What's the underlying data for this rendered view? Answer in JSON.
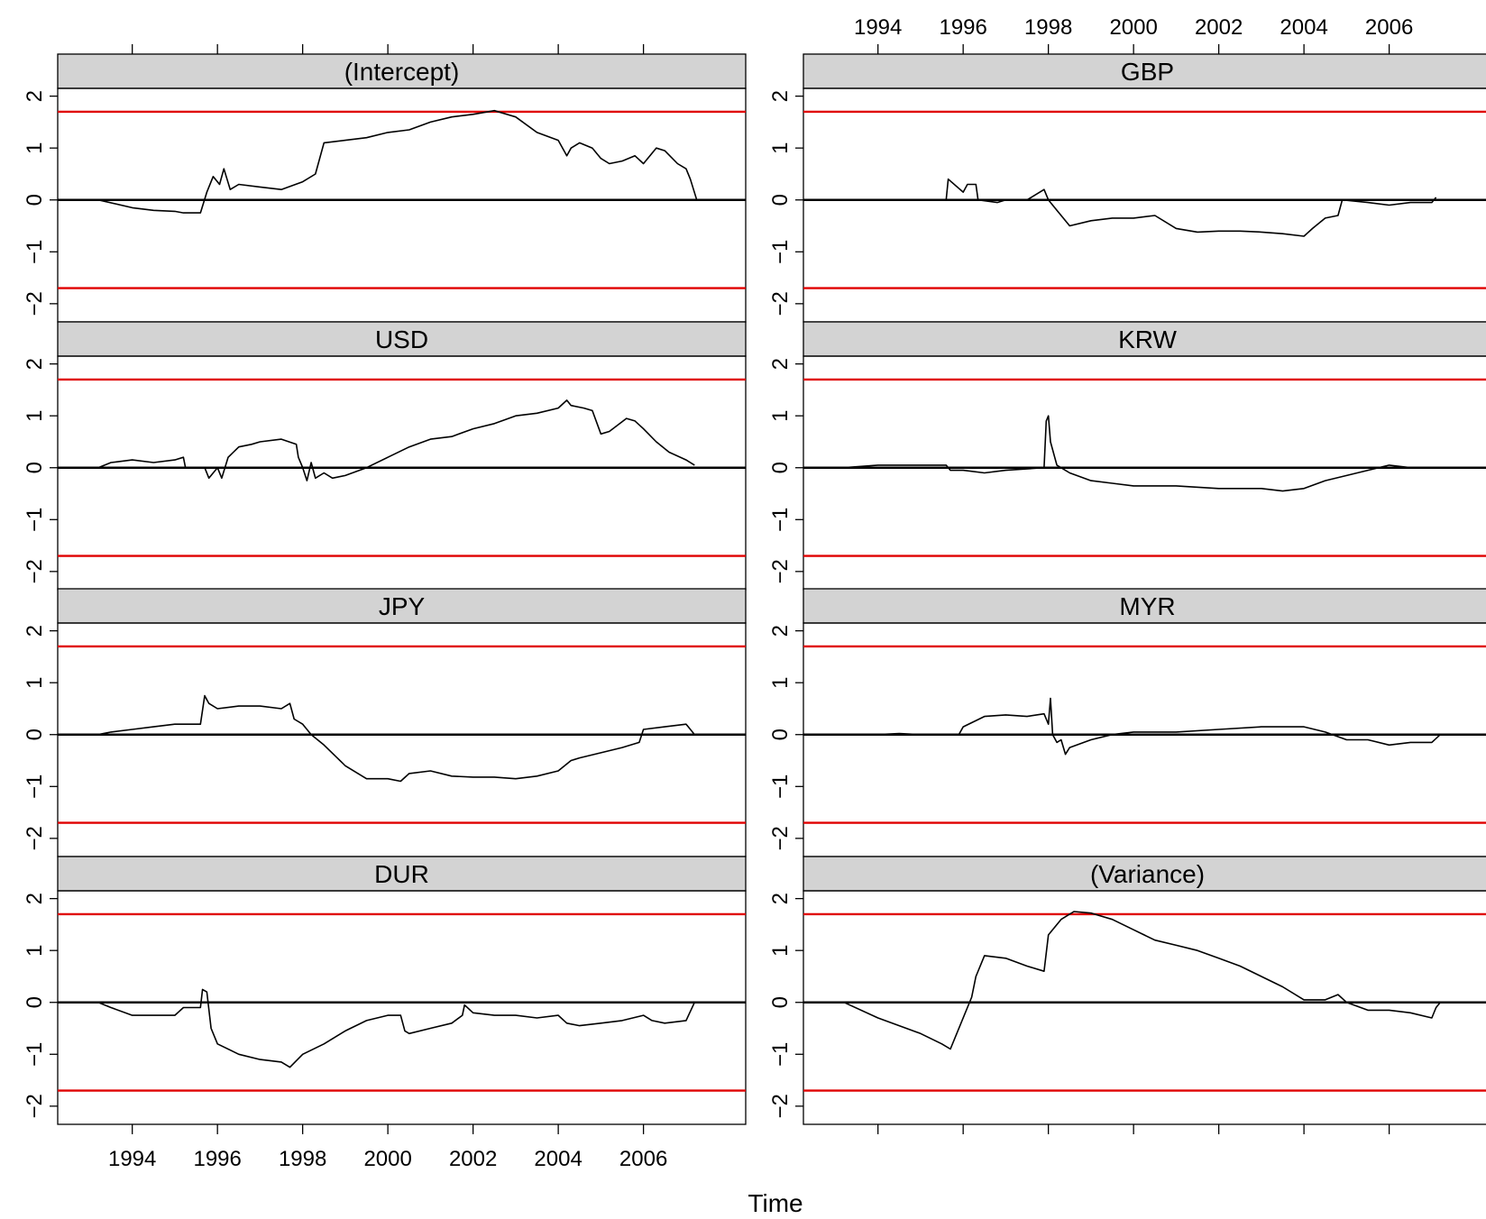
{
  "chart_data": {
    "type": "line",
    "xlabel": "Time",
    "x_ticks": [
      "1994",
      "1996",
      "1998",
      "2000",
      "2002",
      "2004",
      "2006"
    ],
    "y_ticks": [
      "−2",
      "−1",
      "0",
      "1",
      "2"
    ],
    "xlim": [
      1992.25,
      2008.4
    ],
    "ylim": [
      -2.35,
      2.15
    ],
    "reference_lines": {
      "boundary": [
        1.7,
        -1.7
      ],
      "zero": 0
    },
    "colors": {
      "boundary": "#e00000",
      "series": "#000000",
      "strip": "#d3d3d3"
    },
    "panels": [
      {
        "name": "(Intercept)",
        "x": [
          1993.2,
          1994.0,
          1994.5,
          1995.0,
          1995.2,
          1995.6,
          1995.75,
          1995.9,
          1996.05,
          1996.15,
          1996.3,
          1996.5,
          1997.0,
          1997.5,
          1998.0,
          1998.3,
          1998.5,
          1999.0,
          1999.5,
          2000.0,
          2000.5,
          2001.0,
          2001.5,
          2002.0,
          2002.5,
          2003.0,
          2003.5,
          2004.0,
          2004.2,
          2004.3,
          2004.5,
          2004.8,
          2005.0,
          2005.2,
          2005.5,
          2005.8,
          2006.0,
          2006.3,
          2006.5,
          2006.8,
          2007.0,
          2007.1,
          2007.25
        ],
        "y": [
          0.0,
          -0.15,
          -0.2,
          -0.22,
          -0.25,
          -0.25,
          0.15,
          0.45,
          0.3,
          0.6,
          0.2,
          0.3,
          0.25,
          0.2,
          0.35,
          0.5,
          1.1,
          1.15,
          1.2,
          1.3,
          1.35,
          1.5,
          1.6,
          1.65,
          1.72,
          1.6,
          1.3,
          1.15,
          0.85,
          1.0,
          1.1,
          1.0,
          0.8,
          0.7,
          0.75,
          0.85,
          0.7,
          1.0,
          0.95,
          0.7,
          0.6,
          0.4,
          0.0
        ]
      },
      {
        "name": "GBP",
        "x": [
          1993.2,
          1994.0,
          1995.0,
          1995.6,
          1995.65,
          1996.0,
          1996.1,
          1996.3,
          1996.35,
          1996.8,
          1997.0,
          1997.5,
          1997.9,
          1998.0,
          1998.2,
          1998.5,
          1999.0,
          1999.5,
          2000.0,
          2000.5,
          2001.0,
          2001.5,
          2002.0,
          2002.5,
          2003.0,
          2003.5,
          2004.0,
          2004.2,
          2004.5,
          2004.8,
          2004.9,
          2005.5,
          2006.0,
          2006.5,
          2007.0,
          2007.1
        ],
        "y": [
          0.0,
          0.0,
          0.0,
          0.0,
          0.4,
          0.15,
          0.3,
          0.3,
          0.0,
          -0.05,
          0.0,
          0.0,
          0.2,
          0.0,
          -0.2,
          -0.5,
          -0.4,
          -0.35,
          -0.35,
          -0.3,
          -0.55,
          -0.62,
          -0.6,
          -0.6,
          -0.62,
          -0.65,
          -0.7,
          -0.55,
          -0.35,
          -0.3,
          0.0,
          -0.05,
          -0.1,
          -0.05,
          -0.05,
          0.05
        ]
      },
      {
        "name": "USD",
        "x": [
          1993.2,
          1993.5,
          1994.0,
          1994.5,
          1995.0,
          1995.2,
          1995.25,
          1995.7,
          1995.8,
          1996.0,
          1996.1,
          1996.25,
          1996.5,
          1996.8,
          1997.0,
          1997.5,
          1997.85,
          1997.9,
          1998.0,
          1998.1,
          1998.2,
          1998.3,
          1998.5,
          1998.7,
          1999.0,
          1999.5,
          2000.0,
          2000.5,
          2001.0,
          2001.5,
          2002.0,
          2002.5,
          2003.0,
          2003.5,
          2004.0,
          2004.2,
          2004.3,
          2004.6,
          2004.8,
          2005.0,
          2005.2,
          2005.6,
          2005.8,
          2006.0,
          2006.3,
          2006.6,
          2007.0,
          2007.2
        ],
        "y": [
          0.0,
          0.1,
          0.15,
          0.1,
          0.15,
          0.2,
          0.0,
          0.0,
          -0.2,
          0.0,
          -0.2,
          0.2,
          0.4,
          0.45,
          0.5,
          0.55,
          0.45,
          0.2,
          0.0,
          -0.25,
          0.1,
          -0.2,
          -0.1,
          -0.2,
          -0.15,
          0.0,
          0.2,
          0.4,
          0.55,
          0.6,
          0.75,
          0.85,
          1.0,
          1.05,
          1.15,
          1.3,
          1.2,
          1.15,
          1.1,
          0.65,
          0.7,
          0.95,
          0.9,
          0.75,
          0.5,
          0.3,
          0.15,
          0.05
        ]
      },
      {
        "name": "KRW",
        "x": [
          1993.2,
          1994.0,
          1995.0,
          1995.6,
          1995.7,
          1996.0,
          1996.5,
          1997.0,
          1997.9,
          1997.95,
          1998.0,
          1998.05,
          1998.15,
          1998.2,
          1998.5,
          1999.0,
          1999.5,
          2000.0,
          2001.0,
          2002.0,
          2003.0,
          2003.5,
          2004.0,
          2004.5,
          2005.0,
          2005.5,
          2006.0,
          2006.5,
          2007.0,
          2007.2
        ],
        "y": [
          0.0,
          0.05,
          0.05,
          0.05,
          -0.05,
          -0.05,
          -0.1,
          -0.05,
          0.0,
          0.9,
          1.0,
          0.5,
          0.2,
          0.05,
          -0.1,
          -0.25,
          -0.3,
          -0.35,
          -0.35,
          -0.4,
          -0.4,
          -0.45,
          -0.4,
          -0.25,
          -0.15,
          -0.05,
          0.05,
          0.0,
          0.0,
          0.0
        ]
      },
      {
        "name": "JPY",
        "x": [
          1993.2,
          1993.5,
          1994.0,
          1994.5,
          1995.0,
          1995.25,
          1995.6,
          1995.7,
          1995.8,
          1996.0,
          1996.5,
          1997.0,
          1997.5,
          1997.7,
          1997.8,
          1998.0,
          1998.2,
          1998.5,
          1999.0,
          1999.5,
          2000.0,
          2000.3,
          2000.5,
          2001.0,
          2001.5,
          2002.0,
          2002.5,
          2003.0,
          2003.5,
          2004.0,
          2004.3,
          2004.5,
          2005.0,
          2005.5,
          2005.9,
          2006.0,
          2006.5,
          2007.0,
          2007.2
        ],
        "y": [
          0.0,
          0.05,
          0.1,
          0.15,
          0.2,
          0.2,
          0.2,
          0.75,
          0.6,
          0.5,
          0.55,
          0.55,
          0.5,
          0.6,
          0.3,
          0.2,
          0.0,
          -0.2,
          -0.6,
          -0.85,
          -0.85,
          -0.9,
          -0.75,
          -0.7,
          -0.8,
          -0.82,
          -0.82,
          -0.85,
          -0.8,
          -0.7,
          -0.5,
          -0.45,
          -0.35,
          -0.25,
          -0.15,
          0.1,
          0.15,
          0.2,
          0.0
        ]
      },
      {
        "name": "MYR",
        "x": [
          1993.2,
          1994.0,
          1994.5,
          1995.0,
          1995.5,
          1995.9,
          1996.0,
          1996.5,
          1997.0,
          1997.5,
          1997.9,
          1998.0,
          1998.05,
          1998.1,
          1998.2,
          1998.3,
          1998.4,
          1998.5,
          1999.0,
          1999.5,
          2000.0,
          2001.0,
          2002.0,
          2003.0,
          2004.0,
          2004.5,
          2005.0,
          2005.5,
          2006.0,
          2006.5,
          2007.0,
          2007.2
        ],
        "y": [
          0.0,
          0.0,
          0.02,
          0.0,
          0.0,
          0.0,
          0.15,
          0.35,
          0.38,
          0.35,
          0.4,
          0.2,
          0.7,
          0.0,
          -0.15,
          -0.1,
          -0.38,
          -0.25,
          -0.1,
          0.0,
          0.05,
          0.05,
          0.1,
          0.15,
          0.15,
          0.05,
          -0.1,
          -0.1,
          -0.2,
          -0.15,
          -0.15,
          0.0
        ]
      },
      {
        "name": "DUR",
        "x": [
          1993.2,
          1993.5,
          1994.0,
          1994.5,
          1995.0,
          1995.2,
          1995.6,
          1995.65,
          1995.75,
          1995.85,
          1996.0,
          1996.5,
          1997.0,
          1997.5,
          1997.7,
          1998.0,
          1998.5,
          1999.0,
          1999.5,
          2000.0,
          2000.3,
          2000.4,
          2000.5,
          2001.0,
          2001.5,
          2001.75,
          2001.8,
          2002.0,
          2002.5,
          2003.0,
          2003.5,
          2004.0,
          2004.2,
          2004.5,
          2005.0,
          2005.5,
          2006.0,
          2006.2,
          2006.5,
          2007.0,
          2007.2
        ],
        "y": [
          0.0,
          -0.1,
          -0.25,
          -0.25,
          -0.25,
          -0.1,
          -0.1,
          0.25,
          0.2,
          -0.5,
          -0.8,
          -1.0,
          -1.1,
          -1.15,
          -1.25,
          -1.0,
          -0.8,
          -0.55,
          -0.35,
          -0.25,
          -0.25,
          -0.55,
          -0.6,
          -0.5,
          -0.4,
          -0.25,
          -0.05,
          -0.2,
          -0.25,
          -0.25,
          -0.3,
          -0.25,
          -0.4,
          -0.45,
          -0.4,
          -0.35,
          -0.25,
          -0.35,
          -0.4,
          -0.35,
          0.0
        ]
      },
      {
        "name": "(Variance)",
        "x": [
          1993.2,
          1994.0,
          1995.0,
          1995.5,
          1995.7,
          1996.2,
          1996.3,
          1996.5,
          1997.0,
          1997.5,
          1997.9,
          1998.0,
          1998.3,
          1998.6,
          1999.0,
          1999.5,
          2000.0,
          2000.5,
          2001.0,
          2001.5,
          2002.0,
          2002.5,
          2003.0,
          2003.5,
          2004.0,
          2004.5,
          2004.8,
          2005.0,
          2005.5,
          2006.0,
          2006.5,
          2007.0,
          2007.1,
          2007.2
        ],
        "y": [
          0.0,
          -0.3,
          -0.6,
          -0.8,
          -0.9,
          0.1,
          0.5,
          0.9,
          0.85,
          0.7,
          0.6,
          1.3,
          1.6,
          1.75,
          1.72,
          1.6,
          1.4,
          1.2,
          1.1,
          1.0,
          0.85,
          0.7,
          0.5,
          0.3,
          0.05,
          0.05,
          0.15,
          0.0,
          -0.15,
          -0.15,
          -0.2,
          -0.3,
          -0.1,
          0.0
        ]
      }
    ]
  }
}
